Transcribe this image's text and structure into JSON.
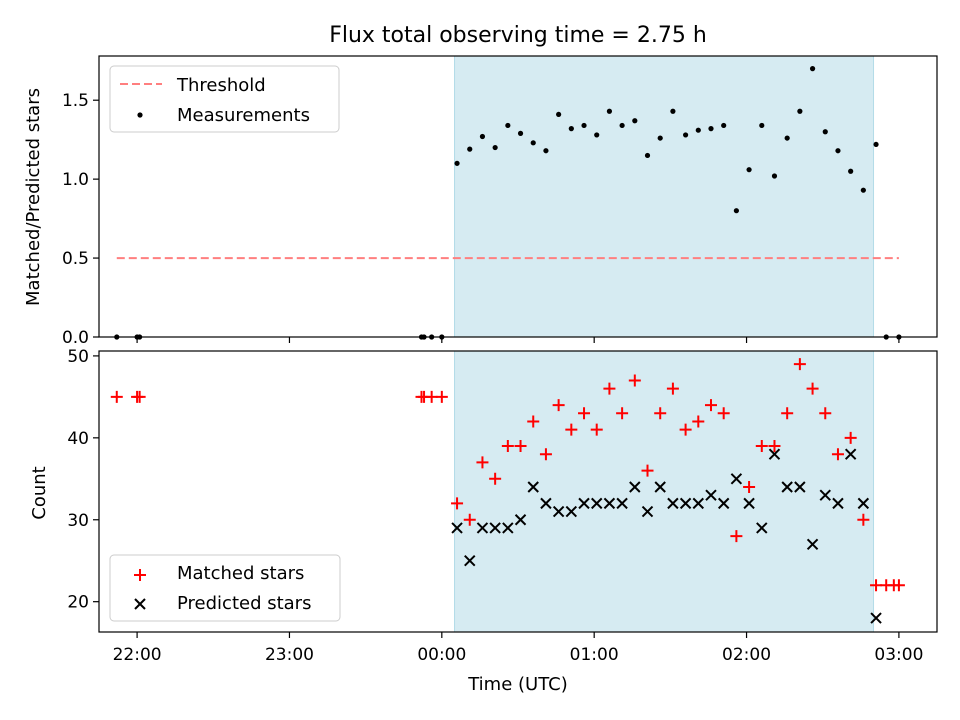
{
  "chart_data": [
    {
      "type": "scatter",
      "title": "Flux total observing time = 2.75 h",
      "xlabel": "",
      "ylabel": "Matched/Predicted stars",
      "xlim": [
        "21:45",
        "03:15"
      ],
      "ylim": [
        0,
        1.78
      ],
      "yticks": [
        0.0,
        0.5,
        1.0,
        1.5
      ],
      "ytick_labels": [
        "0.0",
        "0.5",
        "1.0",
        "1.5"
      ],
      "xticks": [
        "22:00",
        "23:00",
        "00:00",
        "01:00",
        "02:00",
        "03:00"
      ],
      "show_xtick_labels": false,
      "grid": false,
      "legend_position": "upper-left",
      "shaded_interval": {
        "start": "00:05",
        "end": "02:50",
        "color": "#add8e6"
      },
      "series": [
        {
          "name": "Threshold",
          "kind": "line",
          "style": "dashed",
          "color": "#ff7f7f",
          "x": [
            "21:52",
            "03:00"
          ],
          "y": [
            0.5,
            0.5
          ]
        },
        {
          "name": "Measurements",
          "kind": "scatter",
          "marker": "dot",
          "color": "#000000",
          "x": [
            "21:52",
            "22:00",
            "22:01",
            "23:52",
            "23:53",
            "23:56",
            "00:00",
            "00:06",
            "00:11",
            "00:16",
            "00:21",
            "00:26",
            "00:31",
            "00:36",
            "00:41",
            "00:46",
            "00:51",
            "00:56",
            "01:01",
            "01:06",
            "01:11",
            "01:16",
            "01:21",
            "01:26",
            "01:31",
            "01:36",
            "01:41",
            "01:46",
            "01:51",
            "01:56",
            "02:01",
            "02:06",
            "02:11",
            "02:16",
            "02:21",
            "02:26",
            "02:31",
            "02:36",
            "02:41",
            "02:46",
            "02:51",
            "02:55",
            "03:00"
          ],
          "y": [
            0,
            0,
            0,
            0,
            0,
            0,
            0,
            1.1,
            1.19,
            1.27,
            1.2,
            1.34,
            1.29,
            1.23,
            1.18,
            1.41,
            1.32,
            1.34,
            1.28,
            1.43,
            1.34,
            1.37,
            1.15,
            1.26,
            1.43,
            1.28,
            1.31,
            1.32,
            1.34,
            0.8,
            1.06,
            1.34,
            1.02,
            1.26,
            1.43,
            1.7,
            1.3,
            1.18,
            1.05,
            0.93,
            1.22,
            0,
            0
          ]
        }
      ]
    },
    {
      "type": "scatter",
      "title": "",
      "xlabel": "Time (UTC)",
      "ylabel": "Count",
      "xlim": [
        "21:45",
        "03:15"
      ],
      "ylim": [
        16.3,
        50.6
      ],
      "yticks": [
        20,
        30,
        40,
        50
      ],
      "ytick_labels": [
        "20",
        "30",
        "40",
        "50"
      ],
      "xticks": [
        "22:00",
        "23:00",
        "00:00",
        "01:00",
        "02:00",
        "03:00"
      ],
      "xtick_labels": [
        "22:00",
        "23:00",
        "00:00",
        "01:00",
        "02:00",
        "03:00"
      ],
      "grid": false,
      "legend_position": "lower-left",
      "shaded_interval": {
        "start": "00:05",
        "end": "02:50",
        "color": "#add8e6"
      },
      "series": [
        {
          "name": "Matched stars",
          "kind": "scatter",
          "marker": "plus",
          "color": "#ff0000",
          "x": [
            "21:52",
            "22:00",
            "22:01",
            "23:52",
            "23:53",
            "23:56",
            "00:00",
            "00:06",
            "00:11",
            "00:16",
            "00:21",
            "00:26",
            "00:31",
            "00:36",
            "00:41",
            "00:46",
            "00:51",
            "00:56",
            "01:01",
            "01:06",
            "01:11",
            "01:16",
            "01:21",
            "01:26",
            "01:31",
            "01:36",
            "01:41",
            "01:46",
            "01:51",
            "01:56",
            "02:01",
            "02:06",
            "02:11",
            "02:16",
            "02:21",
            "02:26",
            "02:31",
            "02:36",
            "02:41",
            "02:46",
            "02:51",
            "02:55",
            "02:58",
            "03:00"
          ],
          "y": [
            45,
            45,
            45,
            45,
            45,
            45,
            45,
            32,
            30,
            37,
            35,
            39,
            39,
            42,
            38,
            44,
            41,
            43,
            41,
            46,
            43,
            47,
            36,
            43,
            46,
            41,
            42,
            44,
            43,
            28,
            34,
            39,
            39,
            43,
            49,
            46,
            43,
            38,
            40,
            30,
            22,
            22,
            22,
            22
          ]
        },
        {
          "name": "Predicted stars",
          "kind": "scatter",
          "marker": "x",
          "color": "#000000",
          "x": [
            "00:06",
            "00:11",
            "00:16",
            "00:21",
            "00:26",
            "00:31",
            "00:36",
            "00:41",
            "00:46",
            "00:51",
            "00:56",
            "01:01",
            "01:06",
            "01:11",
            "01:16",
            "01:21",
            "01:26",
            "01:31",
            "01:36",
            "01:41",
            "01:46",
            "01:51",
            "01:56",
            "02:01",
            "02:06",
            "02:11",
            "02:16",
            "02:21",
            "02:26",
            "02:31",
            "02:36",
            "02:41",
            "02:46",
            "02:51"
          ],
          "y": [
            29,
            25,
            29,
            29,
            29,
            30,
            34,
            32,
            31,
            31,
            32,
            32,
            32,
            32,
            34,
            31,
            34,
            32,
            32,
            32,
            33,
            32,
            35,
            32,
            29,
            38,
            34,
            34,
            27,
            33,
            32,
            38,
            32,
            18
          ]
        }
      ]
    }
  ]
}
